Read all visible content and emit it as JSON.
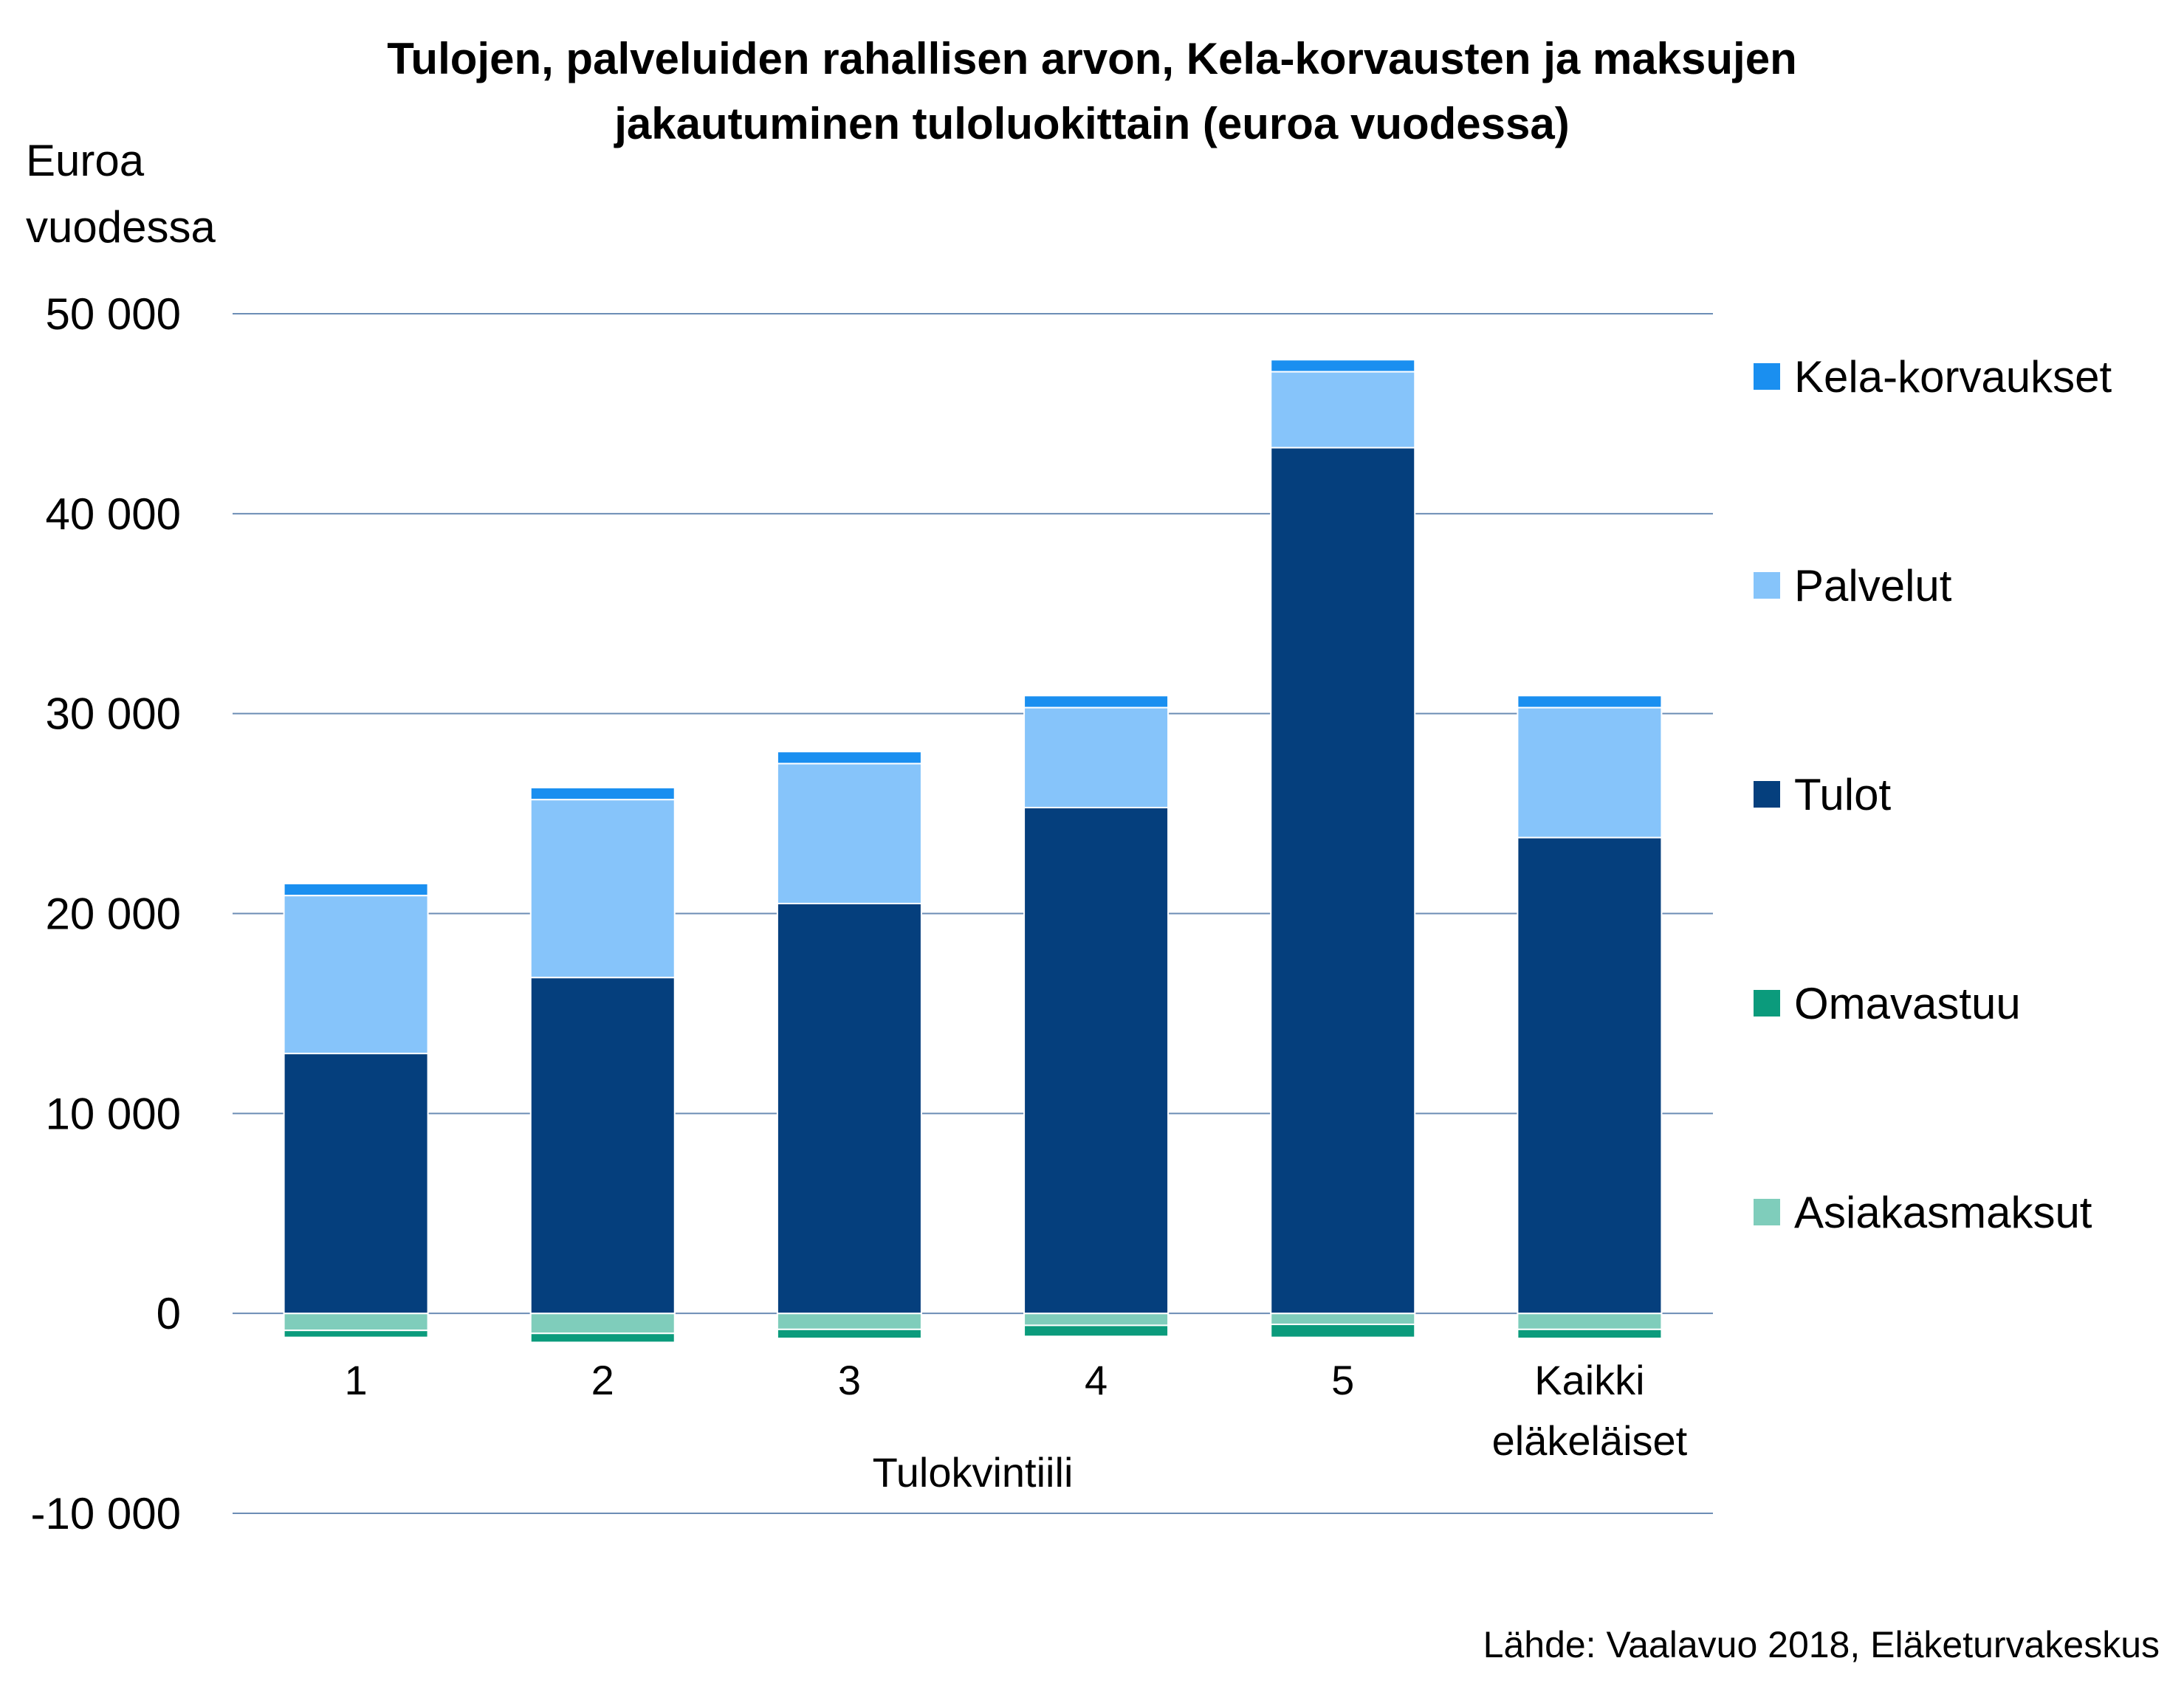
{
  "chart_data": {
    "type": "bar",
    "stacked": true,
    "title_lines": [
      "Tulojen, palveluiden rahallisen arvon, Kela-korvausten ja maksujen",
      "jakautuminen tuloluokittain (euroa vuodessa)"
    ],
    "ylabel_lines": [
      "Euroa",
      "vuodessa"
    ],
    "xlabel": "Tulokvintiili",
    "categories": [
      [
        "1"
      ],
      [
        "2"
      ],
      [
        "3"
      ],
      [
        "4"
      ],
      [
        "5"
      ],
      [
        "Kaikki",
        "eläkeläiset"
      ]
    ],
    "ylim": [
      -10000,
      50000
    ],
    "yticks": [
      50000,
      40000,
      30000,
      20000,
      10000,
      0,
      -10000
    ],
    "ytick_labels": [
      "50 000",
      "40 000",
      "30 000",
      "20 000",
      "10 000",
      "0",
      "-10 000"
    ],
    "grid": true,
    "legend_position": "right",
    "series": [
      {
        "name": "Asiakasmaksut",
        "color": "#7fcdbb",
        "values": [
          -850,
          -1000,
          -800,
          -600,
          -550,
          -800
        ]
      },
      {
        "name": "Omavastuu",
        "color": "#0b9b7c",
        "values": [
          -350,
          -450,
          -450,
          -550,
          -650,
          -450
        ]
      },
      {
        "name": "Tulot",
        "color": "#053f7d",
        "values": [
          13000,
          16800,
          20500,
          25300,
          43300,
          23800
        ]
      },
      {
        "name": "Palvelut",
        "color": "#86c4fa",
        "values": [
          7900,
          8900,
          7000,
          5000,
          3800,
          6500
        ]
      },
      {
        "name": "Kela-korvaukset",
        "color": "#1a8ff0",
        "values": [
          600,
          600,
          600,
          600,
          600,
          600
        ]
      }
    ],
    "legend_order": [
      "Kela-korvaukset",
      "Palvelut",
      "Tulot",
      "Omavastuu",
      "Asiakasmaksut"
    ],
    "gridline_color": "#6c8db5",
    "source": "Lähde: Vaalavuo 2018, Eläketurvakeskus"
  }
}
